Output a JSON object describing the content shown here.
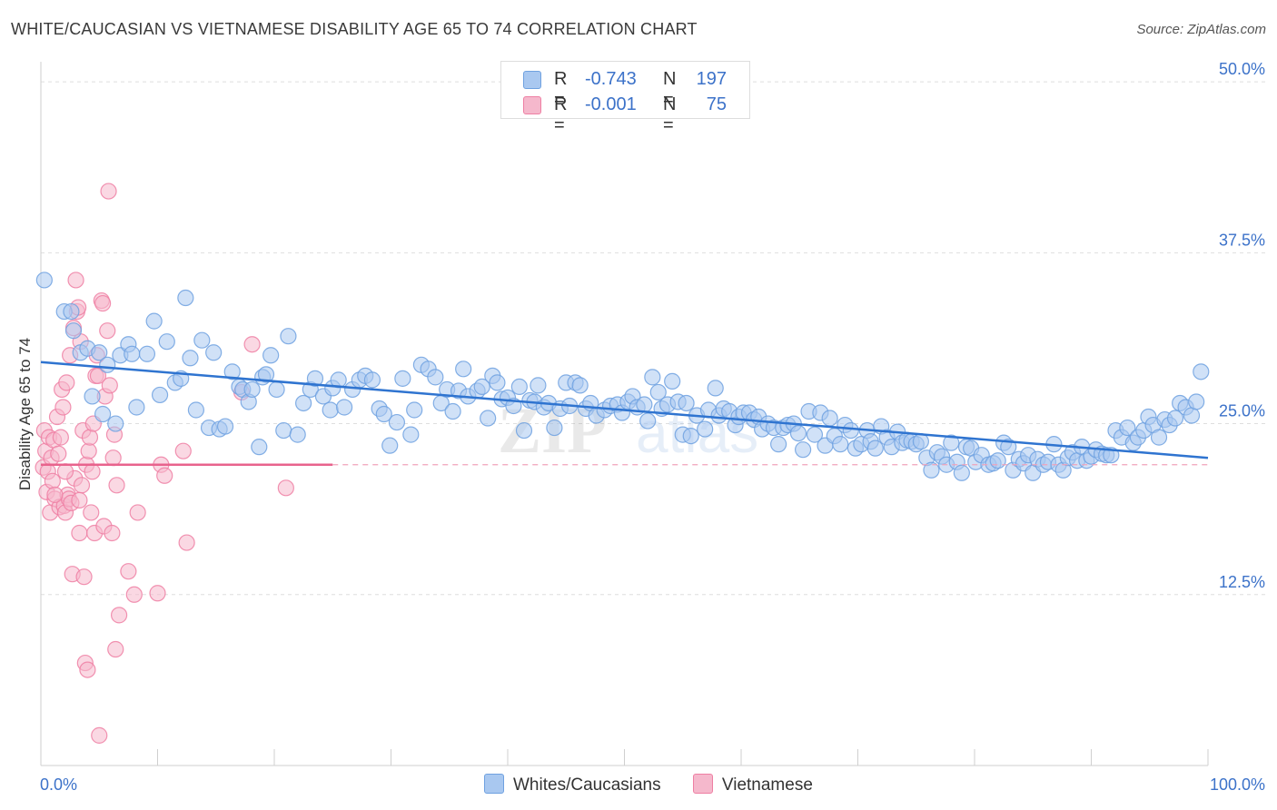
{
  "title": "WHITE/CAUCASIAN VS VIETNAMESE DISABILITY AGE 65 TO 74 CORRELATION CHART",
  "source": "Source: ZipAtlas.com",
  "legend_top": [
    {
      "r_label": "R =",
      "r_value": "-0.743",
      "n_label": "N =",
      "n_value": "197",
      "color": "#a9c8f0"
    },
    {
      "r_label": "R =",
      "r_value": "-0.001",
      "n_label": "N =",
      "n_value": "75",
      "color": "#f5b8cc"
    }
  ],
  "legend_bottom": [
    {
      "label": "Whites/Caucasians",
      "color": "#a9c8f0"
    },
    {
      "label": "Vietnamese",
      "color": "#f5b8cc"
    }
  ],
  "chart_data": {
    "type": "scatter",
    "title": "WHITE/CAUCASIAN VS VIETNAMESE DISABILITY AGE 65 TO 74 CORRELATION CHART",
    "xlabel": "",
    "ylabel": "Disability Age 65 to 74",
    "xlim": [
      0,
      100
    ],
    "ylim": [
      0,
      52
    ],
    "x_tick_labels": [
      "0.0%",
      "100.0%"
    ],
    "y_ticks": [
      12.5,
      25.0,
      37.5,
      50.0
    ],
    "y_tick_labels": [
      "12.5%",
      "25.0%",
      "37.5%",
      "50.0%"
    ],
    "watermark": "ZIPatlas",
    "series": [
      {
        "name": "Whites/Caucasians",
        "color": "#6fa1e0",
        "fill": "#a9c8f0",
        "r": -0.743,
        "n": 197,
        "trend": {
          "x": [
            0,
            100
          ],
          "y": [
            29.5,
            22.5
          ]
        },
        "points": [
          [
            0.3,
            35.5
          ],
          [
            2.0,
            33.2
          ],
          [
            2.6,
            33.2
          ],
          [
            2.8,
            31.8
          ],
          [
            3.4,
            30.2
          ],
          [
            4.0,
            30.5
          ],
          [
            4.4,
            27.0
          ],
          [
            5.0,
            30.2
          ],
          [
            5.3,
            25.7
          ],
          [
            5.7,
            29.3
          ],
          [
            6.4,
            25.0
          ],
          [
            6.8,
            30.0
          ],
          [
            7.5,
            30.8
          ],
          [
            7.8,
            30.1
          ],
          [
            8.2,
            26.2
          ],
          [
            9.1,
            30.1
          ],
          [
            9.7,
            32.5
          ],
          [
            10.2,
            27.1
          ],
          [
            10.8,
            31.0
          ],
          [
            11.5,
            28.0
          ],
          [
            12.0,
            28.3
          ],
          [
            12.4,
            34.2
          ],
          [
            12.8,
            29.8
          ],
          [
            13.3,
            26.0
          ],
          [
            13.8,
            31.1
          ],
          [
            14.4,
            24.7
          ],
          [
            14.8,
            30.2
          ],
          [
            15.3,
            24.6
          ],
          [
            15.8,
            24.8
          ],
          [
            16.4,
            28.8
          ],
          [
            17.0,
            27.7
          ],
          [
            17.3,
            27.5
          ],
          [
            17.8,
            26.6
          ],
          [
            18.1,
            27.5
          ],
          [
            18.7,
            23.3
          ],
          [
            19.0,
            28.4
          ],
          [
            19.3,
            28.6
          ],
          [
            19.7,
            30.0
          ],
          [
            20.2,
            27.5
          ],
          [
            20.8,
            24.5
          ],
          [
            21.2,
            31.4
          ],
          [
            22.0,
            24.2
          ],
          [
            22.5,
            26.5
          ],
          [
            23.1,
            27.5
          ],
          [
            23.5,
            28.3
          ],
          [
            24.2,
            27.0
          ],
          [
            24.8,
            26.0
          ],
          [
            25.0,
            27.6
          ],
          [
            25.5,
            28.2
          ],
          [
            26.0,
            26.2
          ],
          [
            26.7,
            27.5
          ],
          [
            27.3,
            28.2
          ],
          [
            27.8,
            28.5
          ],
          [
            28.4,
            28.2
          ],
          [
            29.0,
            26.1
          ],
          [
            29.4,
            25.7
          ],
          [
            29.9,
            23.4
          ],
          [
            30.5,
            25.1
          ],
          [
            31.0,
            28.3
          ],
          [
            31.7,
            24.2
          ],
          [
            32.0,
            26.0
          ],
          [
            32.6,
            29.3
          ],
          [
            33.2,
            29.0
          ],
          [
            33.8,
            28.4
          ],
          [
            34.3,
            26.5
          ],
          [
            34.8,
            27.5
          ],
          [
            35.3,
            25.9
          ],
          [
            35.8,
            27.4
          ],
          [
            36.2,
            29.0
          ],
          [
            36.6,
            27.0
          ],
          [
            37.4,
            27.4
          ],
          [
            37.8,
            27.7
          ],
          [
            38.3,
            25.4
          ],
          [
            38.7,
            28.5
          ],
          [
            39.1,
            28.0
          ],
          [
            39.5,
            26.8
          ],
          [
            40.0,
            26.9
          ],
          [
            40.5,
            26.3
          ],
          [
            41.0,
            27.7
          ],
          [
            41.4,
            24.5
          ],
          [
            41.9,
            26.7
          ],
          [
            42.3,
            26.6
          ],
          [
            42.6,
            27.8
          ],
          [
            43.1,
            26.2
          ],
          [
            43.5,
            26.5
          ],
          [
            44.0,
            24.7
          ],
          [
            44.5,
            26.1
          ],
          [
            45.0,
            28.0
          ],
          [
            45.3,
            26.3
          ],
          [
            45.8,
            28.0
          ],
          [
            46.2,
            27.8
          ],
          [
            46.7,
            26.1
          ],
          [
            47.1,
            26.5
          ],
          [
            47.6,
            25.6
          ],
          [
            48.3,
            26.0
          ],
          [
            48.8,
            26.3
          ],
          [
            49.4,
            26.4
          ],
          [
            49.8,
            25.8
          ],
          [
            50.3,
            26.6
          ],
          [
            50.7,
            27.0
          ],
          [
            51.1,
            26.2
          ],
          [
            51.7,
            26.4
          ],
          [
            52.0,
            25.2
          ],
          [
            52.4,
            28.4
          ],
          [
            52.9,
            27.3
          ],
          [
            53.2,
            26.1
          ],
          [
            53.7,
            26.4
          ],
          [
            54.1,
            28.1
          ],
          [
            54.6,
            26.6
          ],
          [
            55.0,
            24.2
          ],
          [
            55.3,
            26.5
          ],
          [
            55.7,
            24.1
          ],
          [
            56.2,
            25.6
          ],
          [
            56.9,
            24.6
          ],
          [
            57.2,
            26.0
          ],
          [
            57.8,
            27.6
          ],
          [
            58.1,
            25.6
          ],
          [
            58.5,
            26.1
          ],
          [
            59.0,
            25.9
          ],
          [
            59.5,
            24.9
          ],
          [
            59.8,
            25.5
          ],
          [
            60.2,
            25.8
          ],
          [
            60.7,
            25.8
          ],
          [
            61.1,
            25.3
          ],
          [
            61.5,
            25.5
          ],
          [
            61.8,
            24.6
          ],
          [
            62.3,
            25.0
          ],
          [
            62.8,
            24.7
          ],
          [
            63.2,
            23.5
          ],
          [
            63.6,
            24.7
          ],
          [
            64.0,
            24.9
          ],
          [
            64.5,
            25.0
          ],
          [
            64.9,
            24.3
          ],
          [
            65.3,
            23.1
          ],
          [
            65.8,
            25.9
          ],
          [
            66.3,
            24.2
          ],
          [
            66.8,
            25.8
          ],
          [
            67.2,
            23.4
          ],
          [
            67.6,
            25.4
          ],
          [
            68.0,
            24.1
          ],
          [
            68.5,
            23.5
          ],
          [
            68.9,
            24.9
          ],
          [
            69.4,
            24.5
          ],
          [
            69.8,
            23.2
          ],
          [
            70.3,
            23.5
          ],
          [
            70.8,
            24.5
          ],
          [
            71.1,
            23.7
          ],
          [
            71.5,
            23.2
          ],
          [
            72.0,
            24.8
          ],
          [
            72.5,
            24.0
          ],
          [
            72.9,
            23.3
          ],
          [
            73.4,
            24.4
          ],
          [
            73.8,
            23.6
          ],
          [
            74.2,
            23.8
          ],
          [
            74.6,
            23.7
          ],
          [
            75.0,
            23.5
          ],
          [
            75.4,
            23.7
          ],
          [
            75.9,
            22.5
          ],
          [
            76.3,
            21.6
          ],
          [
            76.8,
            22.9
          ],
          [
            77.2,
            22.6
          ],
          [
            77.6,
            22.0
          ],
          [
            78.0,
            23.6
          ],
          [
            78.5,
            22.2
          ],
          [
            78.9,
            21.4
          ],
          [
            79.3,
            23.3
          ],
          [
            79.7,
            23.2
          ],
          [
            80.1,
            22.2
          ],
          [
            80.6,
            22.7
          ],
          [
            81.2,
            22.0
          ],
          [
            81.6,
            22.1
          ],
          [
            82.0,
            22.3
          ],
          [
            82.5,
            23.6
          ],
          [
            82.9,
            23.3
          ],
          [
            83.3,
            21.6
          ],
          [
            83.8,
            22.4
          ],
          [
            84.2,
            22.1
          ],
          [
            84.6,
            22.7
          ],
          [
            85.0,
            21.4
          ],
          [
            85.4,
            22.4
          ],
          [
            85.9,
            22.0
          ],
          [
            86.3,
            22.2
          ],
          [
            86.8,
            23.5
          ],
          [
            87.2,
            22.0
          ],
          [
            87.6,
            21.6
          ],
          [
            88.0,
            22.5
          ],
          [
            88.4,
            22.9
          ],
          [
            88.8,
            22.3
          ],
          [
            89.2,
            23.3
          ],
          [
            89.6,
            22.3
          ],
          [
            90.0,
            22.6
          ],
          [
            90.4,
            23.1
          ],
          [
            90.9,
            22.8
          ],
          [
            91.3,
            22.7
          ],
          [
            91.7,
            22.7
          ],
          [
            92.1,
            24.5
          ],
          [
            92.6,
            24.0
          ],
          [
            93.1,
            24.7
          ],
          [
            93.6,
            23.6
          ],
          [
            94.0,
            24.0
          ],
          [
            94.5,
            24.5
          ],
          [
            94.9,
            25.5
          ],
          [
            95.3,
            24.9
          ],
          [
            95.8,
            24.0
          ],
          [
            96.3,
            25.3
          ],
          [
            96.7,
            24.9
          ],
          [
            97.2,
            25.4
          ],
          [
            97.6,
            26.5
          ],
          [
            98.1,
            26.2
          ],
          [
            98.6,
            25.6
          ],
          [
            99.0,
            26.6
          ],
          [
            99.4,
            28.8
          ]
        ]
      },
      {
        "name": "Vietnamese",
        "color": "#ee7fa3",
        "fill": "#f5b8cc",
        "r": -0.001,
        "n": 75,
        "trend": {
          "x": [
            0,
            25
          ],
          "y": [
            22.0,
            22.0
          ]
        },
        "points": [
          [
            0.2,
            21.8
          ],
          [
            0.3,
            24.5
          ],
          [
            0.4,
            23.0
          ],
          [
            0.5,
            20.0
          ],
          [
            0.6,
            21.5
          ],
          [
            0.7,
            24.0
          ],
          [
            0.8,
            18.5
          ],
          [
            0.9,
            22.5
          ],
          [
            1.0,
            20.8
          ],
          [
            1.1,
            23.8
          ],
          [
            1.2,
            19.5
          ],
          [
            1.4,
            25.5
          ],
          [
            1.5,
            22.8
          ],
          [
            1.6,
            18.9
          ],
          [
            1.7,
            24.0
          ],
          [
            1.8,
            27.5
          ],
          [
            1.9,
            26.2
          ],
          [
            2.0,
            19.0
          ],
          [
            2.1,
            18.5
          ],
          [
            2.2,
            28.0
          ],
          [
            2.3,
            19.8
          ],
          [
            2.4,
            19.5
          ],
          [
            2.5,
            30.0
          ],
          [
            2.6,
            19.2
          ],
          [
            2.7,
            14.0
          ],
          [
            2.8,
            32.0
          ],
          [
            2.9,
            21.0
          ],
          [
            3.0,
            35.5
          ],
          [
            3.1,
            33.2
          ],
          [
            3.2,
            33.5
          ],
          [
            3.3,
            17.0
          ],
          [
            3.4,
            31.0
          ],
          [
            3.5,
            20.5
          ],
          [
            3.6,
            24.5
          ],
          [
            3.7,
            13.8
          ],
          [
            3.8,
            7.5
          ],
          [
            3.9,
            22.0
          ],
          [
            4.0,
            7.0
          ],
          [
            4.1,
            23.0
          ],
          [
            4.2,
            24.0
          ],
          [
            4.3,
            18.5
          ],
          [
            4.4,
            21.5
          ],
          [
            4.5,
            25.0
          ],
          [
            4.6,
            17.0
          ],
          [
            4.7,
            28.5
          ],
          [
            4.8,
            30.0
          ],
          [
            4.9,
            28.5
          ],
          [
            5.0,
            2.2
          ],
          [
            5.2,
            34.0
          ],
          [
            5.3,
            33.8
          ],
          [
            5.4,
            17.5
          ],
          [
            5.5,
            27.0
          ],
          [
            5.7,
            31.8
          ],
          [
            5.8,
            42.0
          ],
          [
            5.9,
            27.8
          ],
          [
            6.1,
            17.0
          ],
          [
            6.2,
            22.5
          ],
          [
            6.3,
            24.2
          ],
          [
            6.4,
            8.5
          ],
          [
            6.5,
            20.5
          ],
          [
            6.7,
            11.0
          ],
          [
            7.5,
            14.2
          ],
          [
            8.0,
            12.5
          ],
          [
            8.3,
            18.5
          ],
          [
            10.0,
            12.6
          ],
          [
            10.3,
            22.0
          ],
          [
            10.6,
            21.2
          ],
          [
            12.2,
            23.0
          ],
          [
            12.5,
            16.3
          ],
          [
            17.2,
            27.3
          ],
          [
            18.1,
            30.8
          ],
          [
            21.0,
            20.3
          ],
          [
            1.2,
            19.8
          ],
          [
            2.1,
            21.5
          ],
          [
            3.3,
            19.4
          ]
        ]
      }
    ]
  }
}
